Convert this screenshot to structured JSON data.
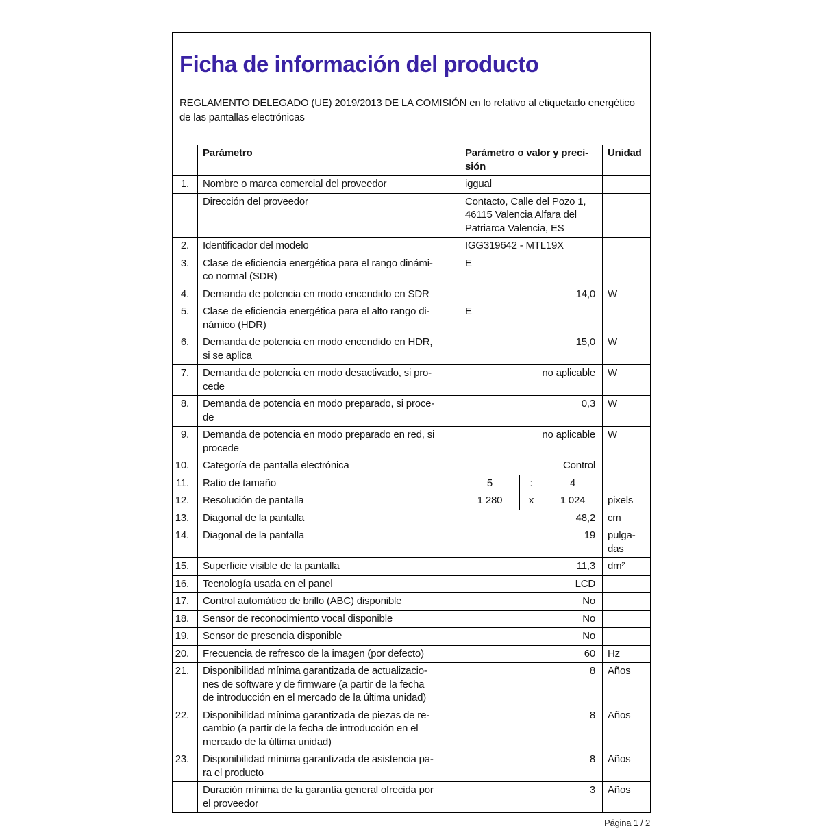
{
  "page": {
    "title": "Ficha de información del producto",
    "subtitle": "REGLAMENTO DELEGADO (UE) 2019/2013 DE LA COMISIÓN en lo relativo al etiquetado energético\nde las pantallas electrónicas",
    "title_color": "#3a22a4",
    "footer": "Página 1 / 2"
  },
  "table": {
    "headers": {
      "num": "",
      "param": "Parámetro",
      "value": "Parámetro o valor y preci-\nsión",
      "unit": "Unidad"
    },
    "rows": [
      {
        "num": "1.",
        "param": "Nombre o marca comercial del proveedor",
        "value": "iggual",
        "value_align": "left",
        "unit": ""
      },
      {
        "num": "",
        "param": "Dirección del proveedor",
        "value": "Contacto, Calle del Pozo 1,\n46115 Valencia Alfara del\nPatriarca Valencia, ES",
        "value_align": "left",
        "unit": ""
      },
      {
        "num": "2.",
        "param": "Identificador del modelo",
        "value": "IGG319642 - MTL19X",
        "value_align": "left",
        "unit": ""
      },
      {
        "num": "3.",
        "param": "Clase de eficiencia energética para el rango dinámi-\nco normal (SDR)",
        "value": "E",
        "value_align": "left",
        "unit": ""
      },
      {
        "num": "4.",
        "param": "Demanda de potencia en modo encendido en SDR",
        "value": "14,0",
        "value_align": "right",
        "unit": "W"
      },
      {
        "num": "5.",
        "param": "Clase de eficiencia energética para el alto rango di-\nnámico (HDR)",
        "value": "E",
        "value_align": "left",
        "unit": ""
      },
      {
        "num": "6.",
        "param": "Demanda de potencia en modo encendido en HDR,\nsi se aplica",
        "value": "15,0",
        "value_align": "right",
        "unit": "W"
      },
      {
        "num": "7.",
        "param": "Demanda de potencia en modo desactivado, si pro-\ncede",
        "value": "no aplicable",
        "value_align": "right",
        "unit": "W"
      },
      {
        "num": "8.",
        "param": "Demanda de potencia en modo preparado, si proce-\nde",
        "value": "0,3",
        "value_align": "right",
        "unit": "W"
      },
      {
        "num": "9.",
        "param": "Demanda de potencia en modo preparado en red, si\nprocede",
        "value": "no aplicable",
        "value_align": "right",
        "unit": "W"
      },
      {
        "num": "10.",
        "param": "Categoría de pantalla electrónica",
        "value": "Control",
        "value_align": "right",
        "unit": ""
      },
      {
        "num": "11.",
        "param": "Ratio de tamaño",
        "split": [
          "5",
          ":",
          "4"
        ],
        "unit": ""
      },
      {
        "num": "12.",
        "param": "Resolución de pantalla",
        "split": [
          "1 280",
          "x",
          "1 024"
        ],
        "unit": "pixels"
      },
      {
        "num": "13.",
        "param": "Diagonal de la pantalla",
        "value": "48,2",
        "value_align": "right",
        "unit": "cm"
      },
      {
        "num": "14.",
        "param": "Diagonal de la pantalla",
        "value": "19",
        "value_align": "right",
        "unit": "pulga-\ndas"
      },
      {
        "num": "15.",
        "param": "Superficie visible de la pantalla",
        "value": "11,3",
        "value_align": "right",
        "unit": "dm²"
      },
      {
        "num": "16.",
        "param": "Tecnología usada en el panel",
        "value": "LCD",
        "value_align": "right",
        "unit": ""
      },
      {
        "num": "17.",
        "param": "Control automático de brillo (ABC) disponible",
        "value": "No",
        "value_align": "right",
        "unit": ""
      },
      {
        "num": "18.",
        "param": "Sensor de reconocimiento vocal disponible",
        "value": "No",
        "value_align": "right",
        "unit": ""
      },
      {
        "num": "19.",
        "param": "Sensor de presencia disponible",
        "value": "No",
        "value_align": "right",
        "unit": ""
      },
      {
        "num": "20.",
        "param": "Frecuencia de refresco de la imagen (por defecto)",
        "value": "60",
        "value_align": "right",
        "unit": "Hz"
      },
      {
        "num": "21.",
        "param": "Disponibilidad mínima garantizada de actualizacio-\nnes de software y de firmware (a partir de la fecha\nde introducción en el mercado de la última unidad)",
        "value": "8",
        "value_align": "right",
        "unit": "Años"
      },
      {
        "num": "22.",
        "param": "Disponibilidad mínima garantizada de piezas de re-\ncambio (a partir de la fecha de introducción en el\nmercado de la última unidad)",
        "value": "8",
        "value_align": "right",
        "unit": "Años"
      },
      {
        "num": "23.",
        "param": "Disponibilidad mínima garantizada de asistencia pa-\nra el producto",
        "value": "8",
        "value_align": "right",
        "unit": "Años"
      },
      {
        "num": "",
        "param": "Duración mínima de la garantía general ofrecida por\nel proveedor",
        "value": "3",
        "value_align": "right",
        "unit": "Años"
      }
    ]
  }
}
